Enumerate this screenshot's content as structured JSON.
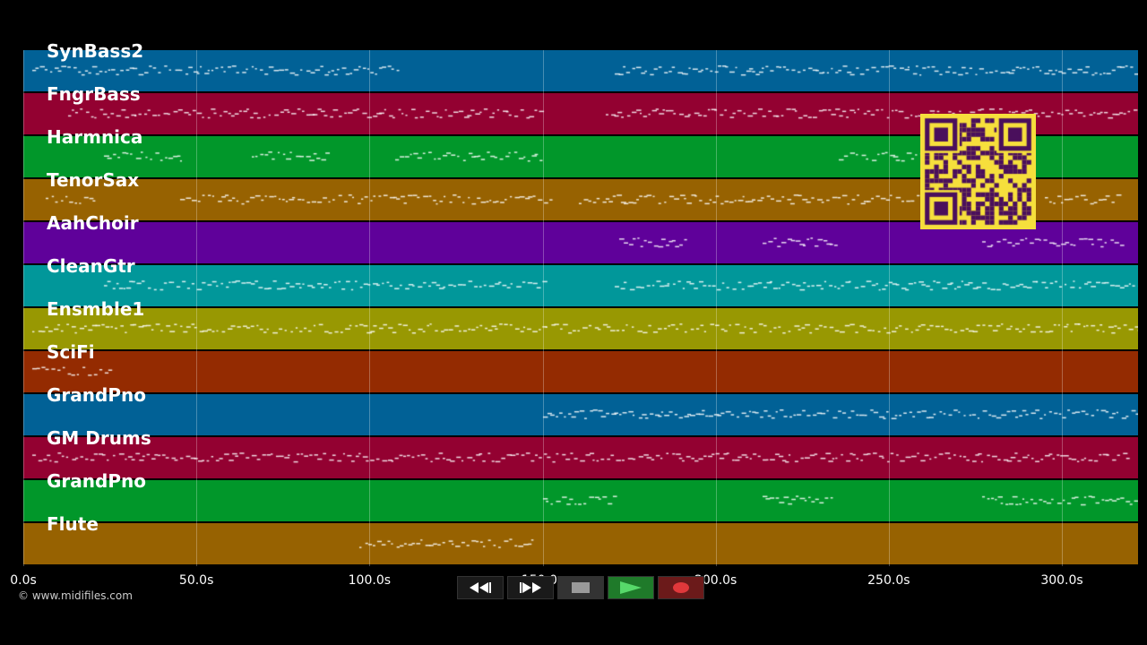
{
  "tracks": [
    {
      "name": "SynBass2",
      "color": "#016196"
    },
    {
      "name": "FngrBass",
      "color": "#930131"
    },
    {
      "name": "Harmnica",
      "color": "#01972a"
    },
    {
      "name": "TenorSax",
      "color": "#976201"
    },
    {
      "name": "AahChoir",
      "color": "#5f019a"
    },
    {
      "name": "CleanGtr",
      "color": "#01979a"
    },
    {
      "name": "Ensmble1",
      "color": "#989802"
    },
    {
      "name": "SciFi",
      "color": "#942b01"
    },
    {
      "name": "GrandPno",
      "color": "#016196"
    },
    {
      "name": "GM Drums",
      "color": "#930131"
    },
    {
      "name": "GrandPno",
      "color": "#01972a"
    },
    {
      "name": "Flute",
      "color": "#976201"
    }
  ],
  "timeline": {
    "ticks": [
      "0.0s",
      "50.0s",
      "100.0s",
      "150.0s",
      "200.0s",
      "250.0s",
      "300.0s"
    ],
    "tick_values": [
      0,
      50,
      100,
      150,
      200,
      250,
      300
    ],
    "max_seconds": 322
  },
  "copyright": "© www.midifiles.com",
  "controls": {
    "rewind": "rewind-icon",
    "fast_forward": "fast-forward-icon",
    "stop": "stop-icon",
    "play": "play-icon",
    "record": "record-icon"
  },
  "qr_color": "#f6df3c"
}
